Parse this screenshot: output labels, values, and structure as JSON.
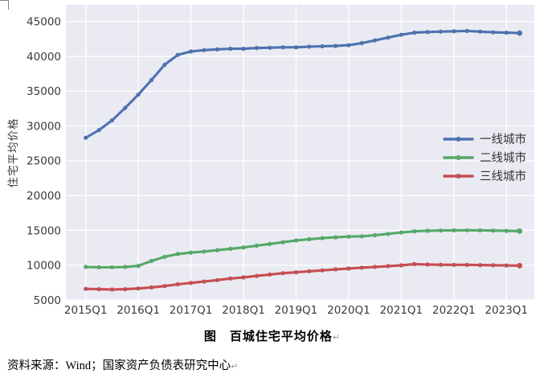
{
  "doc": {
    "title": "图　百城住宅平均价格",
    "source_line": "资料来源：Wind；国家资产负债表研究中心",
    "paragraph_mark": "↵"
  },
  "chart_data": {
    "type": "line",
    "title": "图 百城住宅平均价格",
    "xlabel": "",
    "ylabel": "住宅平均价格",
    "ylim": [
      5000,
      45000
    ],
    "y_ticks": [
      5000,
      10000,
      15000,
      20000,
      25000,
      30000,
      35000,
      40000,
      45000
    ],
    "x_tick_labels": [
      "2015Q1",
      "2016Q1",
      "2017Q1",
      "2018Q1",
      "2019Q1",
      "2020Q1",
      "2021Q1",
      "2022Q1",
      "2023Q1"
    ],
    "grid": true,
    "plot_background": "#EAEAF2",
    "grid_color": "#FFFFFF",
    "tick_label_color": "#3a3a3a",
    "legend_position": "center-right",
    "legend_frame": false,
    "categories": [
      "2015Q1",
      "2015Q2",
      "2015Q3",
      "2015Q4",
      "2016Q1",
      "2016Q2",
      "2016Q3",
      "2016Q4",
      "2017Q1",
      "2017Q2",
      "2017Q3",
      "2017Q4",
      "2018Q1",
      "2018Q2",
      "2018Q3",
      "2018Q4",
      "2019Q1",
      "2019Q2",
      "2019Q3",
      "2019Q4",
      "2020Q1",
      "2020Q2",
      "2020Q3",
      "2020Q4",
      "2021Q1",
      "2021Q2",
      "2021Q3",
      "2021Q4",
      "2022Q1",
      "2022Q2",
      "2022Q3",
      "2022Q4",
      "2023Q1",
      "2023Q2"
    ],
    "series": [
      {
        "name": "一线城市",
        "color": "#4C72B0",
        "values": [
          28300,
          29400,
          30800,
          32600,
          34500,
          36600,
          38800,
          40200,
          40700,
          40900,
          41000,
          41100,
          41100,
          41200,
          41250,
          41300,
          41300,
          41400,
          41450,
          41500,
          41600,
          41900,
          42300,
          42700,
          43100,
          43400,
          43500,
          43550,
          43600,
          43650,
          43550,
          43450,
          43400,
          43350
        ]
      },
      {
        "name": "二线城市",
        "color": "#55A868",
        "values": [
          9750,
          9700,
          9700,
          9750,
          9900,
          10600,
          11200,
          11600,
          11800,
          11950,
          12150,
          12350,
          12550,
          12800,
          13050,
          13300,
          13550,
          13720,
          13880,
          14000,
          14100,
          14150,
          14300,
          14500,
          14700,
          14870,
          14940,
          14980,
          15000,
          15020,
          15000,
          14970,
          14930,
          14900
        ]
      },
      {
        "name": "三线城市",
        "color": "#C44E52",
        "values": [
          6600,
          6550,
          6500,
          6550,
          6650,
          6800,
          7000,
          7250,
          7450,
          7650,
          7850,
          8080,
          8250,
          8450,
          8650,
          8850,
          8980,
          9120,
          9250,
          9400,
          9520,
          9640,
          9750,
          9870,
          9980,
          10150,
          10100,
          10060,
          10050,
          10050,
          10020,
          9990,
          9960,
          9930
        ]
      }
    ]
  }
}
